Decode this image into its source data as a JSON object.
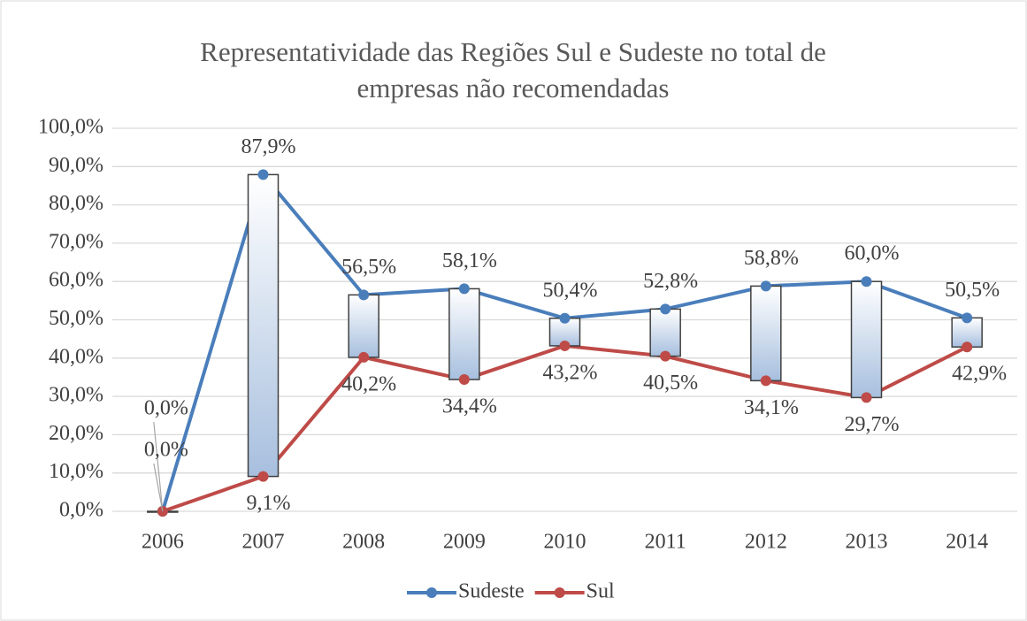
{
  "chart_data": {
    "type": "line",
    "title": "Representatividade das Regiões Sul e Sudeste no total de empresas não recomendadas",
    "categories": [
      "2006",
      "2007",
      "2008",
      "2009",
      "2010",
      "2011",
      "2012",
      "2013",
      "2014"
    ],
    "series": [
      {
        "name": "Sudeste",
        "color": "#4a7ebb",
        "values": [
          0,
          87.9,
          56.5,
          58.1,
          50.4,
          52.8,
          58.8,
          60.0,
          50.5
        ],
        "value_labels": [
          "0,0%",
          "87,9%",
          "56,5%",
          "58,1%",
          "50,4%",
          "52,8%",
          "58,8%",
          "60,0%",
          "50,5%"
        ]
      },
      {
        "name": "Sul",
        "color": "#be4b48",
        "values": [
          0,
          9.1,
          40.2,
          34.4,
          43.2,
          40.5,
          34.1,
          29.7,
          42.9
        ],
        "value_labels": [
          "0,0%",
          "9,1%",
          "40,2%",
          "34,4%",
          "43,2%",
          "40,5%",
          "34,1%",
          "29,7%",
          "42,9%"
        ]
      }
    ],
    "ylim": [
      0,
      100
    ],
    "yticks": [
      {
        "value": 0,
        "label": "0,0%"
      },
      {
        "value": 10,
        "label": "10,0%"
      },
      {
        "value": 20,
        "label": "20,0%"
      },
      {
        "value": 30,
        "label": "30,0%"
      },
      {
        "value": 40,
        "label": "40,0%"
      },
      {
        "value": 50,
        "label": "50,0%"
      },
      {
        "value": 60,
        "label": "60,0%"
      },
      {
        "value": 70,
        "label": "70,0%"
      },
      {
        "value": 80,
        "label": "80,0%"
      },
      {
        "value": 90,
        "label": "90,0%"
      },
      {
        "value": 100,
        "label": "100,0%"
      }
    ],
    "grid": true,
    "legend": "bottom",
    "up_down_bars": true
  }
}
